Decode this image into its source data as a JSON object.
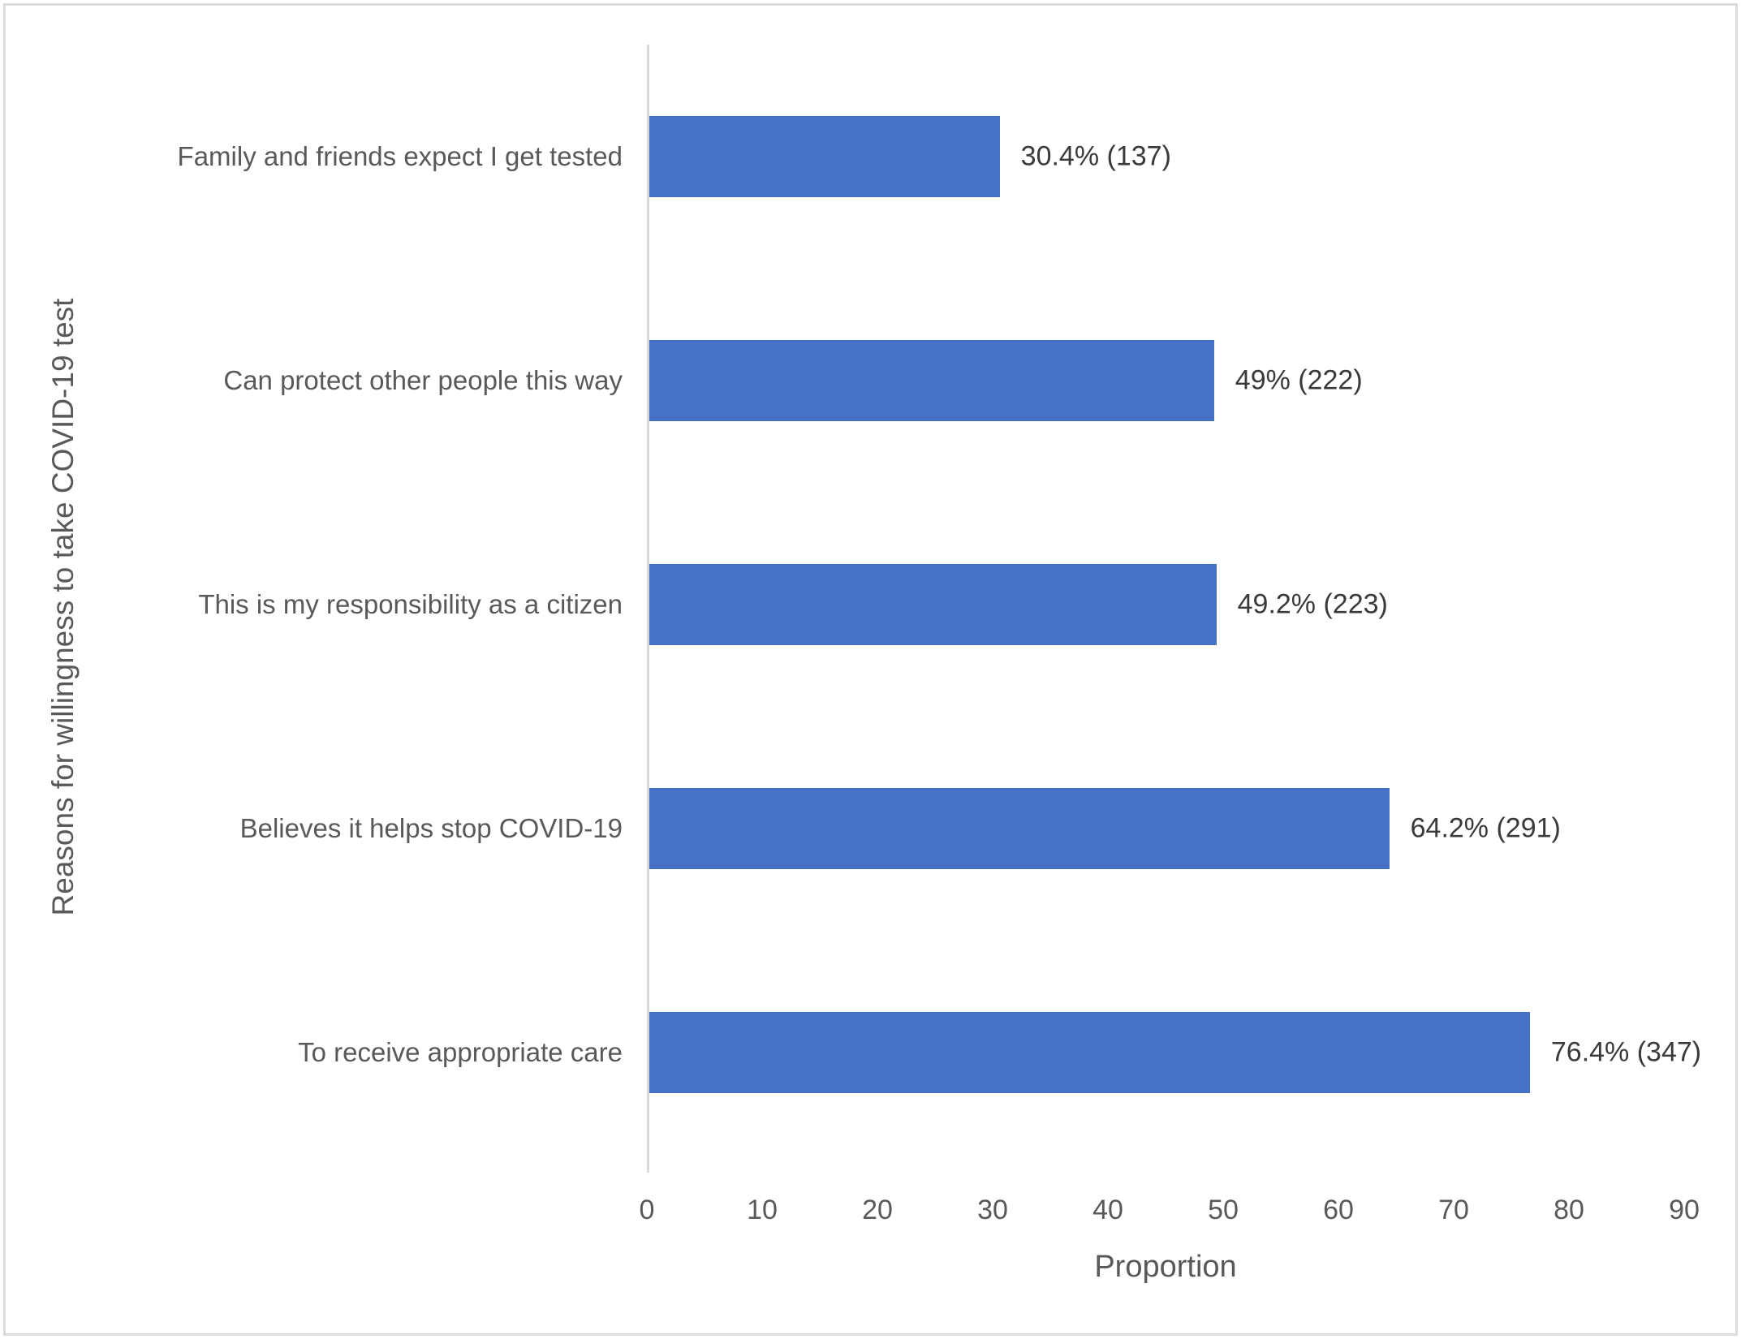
{
  "figure": {
    "border_color": "#dcdcdc",
    "axis_line_color": "#d9d9d9",
    "background": "#ffffff"
  },
  "chart_data": {
    "type": "bar",
    "orientation": "horizontal",
    "title": "",
    "xlabel": "Proportion",
    "ylabel": "Reasons for willingness to take COVID-19 test",
    "xlim": [
      0,
      90
    ],
    "xticks": [
      0,
      10,
      20,
      30,
      40,
      50,
      60,
      70,
      80,
      90
    ],
    "grid": false,
    "legend": false,
    "bar_color": "#4673c8",
    "category_order": "top-to-bottom",
    "categories": [
      "Family and friends expect I get tested",
      "Can protect other people this way",
      "This is my responsibility as a citizen",
      "Believes it helps stop COVID-19",
      "To receive appropriate care"
    ],
    "values": [
      30.4,
      49,
      49.2,
      64.2,
      76.4
    ],
    "counts": [
      137,
      222,
      223,
      291,
      347
    ],
    "data_labels": [
      "30.4% (137)",
      "49% (222)",
      "49.2% (223)",
      "64.2% (291)",
      "76.4% (347)"
    ]
  }
}
